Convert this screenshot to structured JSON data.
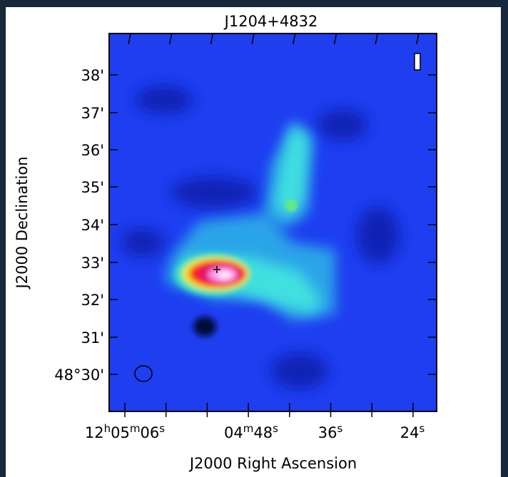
{
  "title": "J1204+4832",
  "x_label": "J2000 Right Ascension",
  "y_label": "J2000 Declination",
  "y_ticks": [
    "38'",
    "37'",
    "36'",
    "35'",
    "34'",
    "33'",
    "32'",
    "31'",
    "48°30'"
  ],
  "x_ticks": [
    [
      {
        "text": "12",
        "sup": false
      },
      {
        "text": "h",
        "sup": true
      },
      {
        "text": "05",
        "sup": false
      },
      {
        "text": "m",
        "sup": true
      },
      {
        "text": "06",
        "sup": false
      },
      {
        "text": "s",
        "sup": true
      }
    ],
    [
      {
        "text": "04",
        "sup": false
      },
      {
        "text": "m",
        "sup": true
      },
      {
        "text": "48",
        "sup": false
      },
      {
        "text": "s",
        "sup": true
      }
    ],
    [
      {
        "text": "36",
        "sup": false
      },
      {
        "text": "s",
        "sup": true
      }
    ],
    [
      {
        "text": "24",
        "sup": false
      },
      {
        "text": "s",
        "sup": true
      }
    ]
  ]
}
